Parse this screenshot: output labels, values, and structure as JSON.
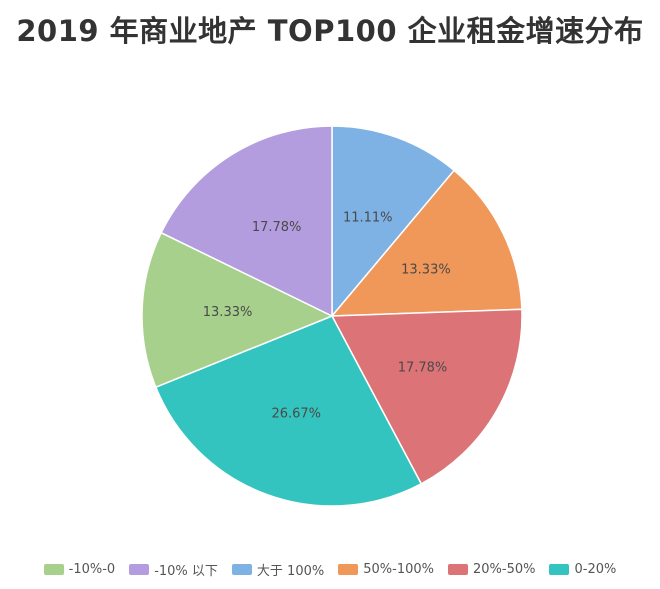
{
  "chart_data": {
    "type": "pie",
    "title": "2019 年商业地产 TOP100 企业租金增速分布",
    "slices": [
      {
        "name": "大于 100%",
        "value": 11.11,
        "label": "11.11%",
        "color": "#7eb2e4"
      },
      {
        "name": "50%-100%",
        "value": 13.33,
        "label": "13.33%",
        "color": "#f0975a"
      },
      {
        "name": "20%-50%",
        "value": 17.78,
        "label": "17.78%",
        "color": "#dc7377"
      },
      {
        "name": "0-20%",
        "value": 26.67,
        "label": "26.67%",
        "color": "#34c4bf"
      },
      {
        "name": "-10%-0",
        "value": 13.33,
        "label": "13.33%",
        "color": "#a7d08c"
      },
      {
        "name": "-10% 以下",
        "value": 17.78,
        "label": "17.78%",
        "color": "#b39ddf"
      }
    ],
    "legend": {
      "placement": "bottom",
      "order": [
        "-10%-0",
        "-10% 以下",
        "大于 100%",
        "50%-100%",
        "20%-50%",
        "0-20%"
      ]
    }
  }
}
